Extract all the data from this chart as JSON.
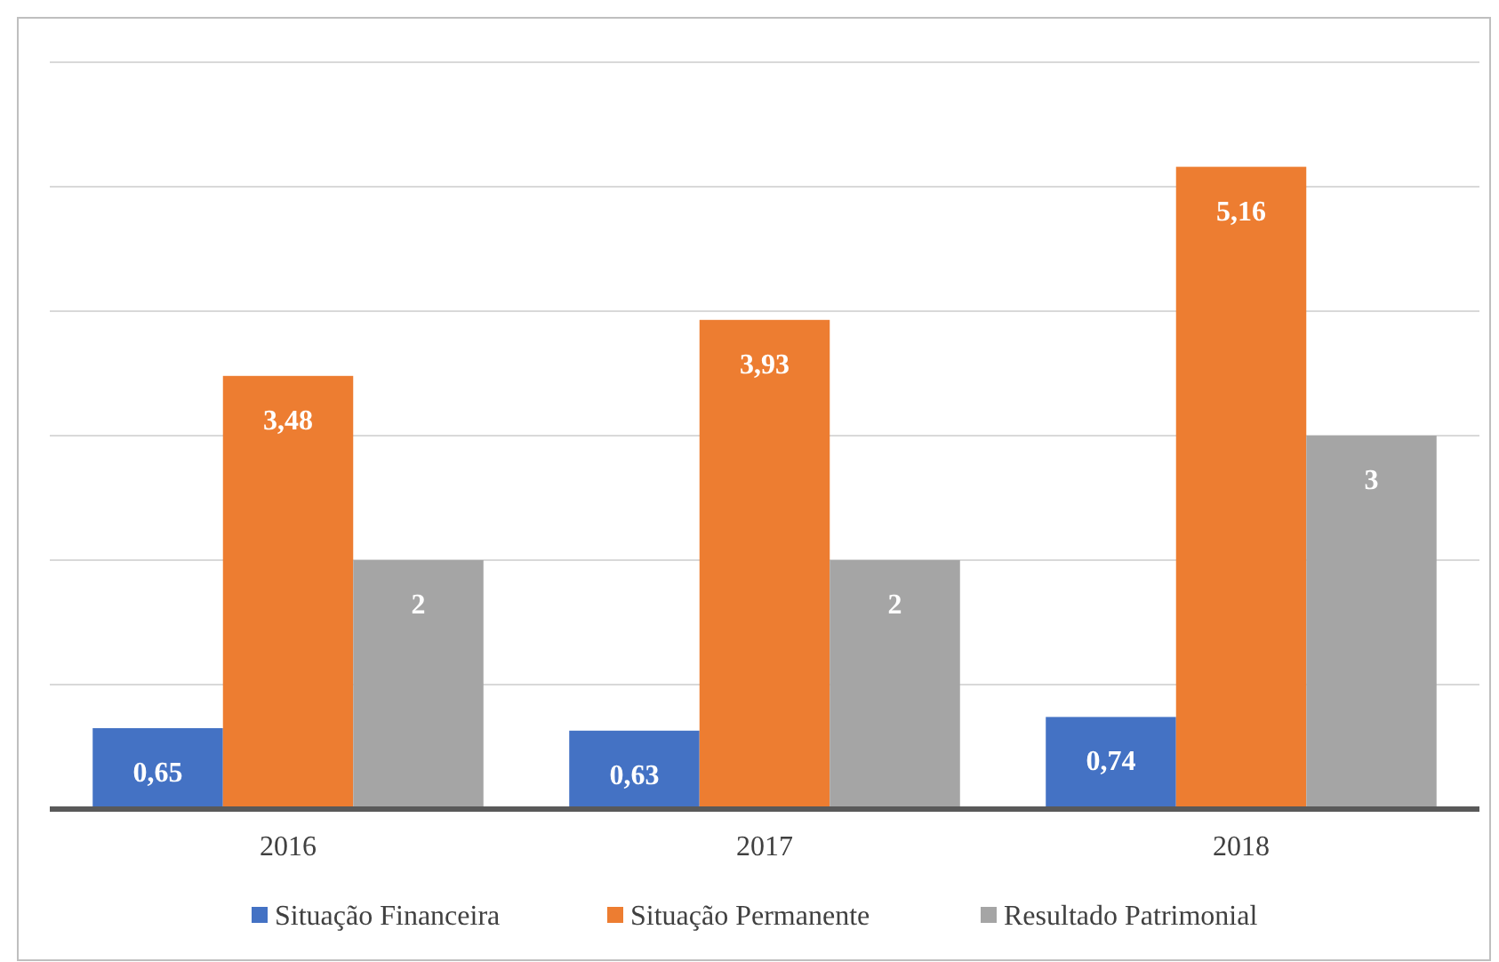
{
  "chart_data": {
    "type": "bar",
    "categories": [
      "2016",
      "2017",
      "2018"
    ],
    "series": [
      {
        "name": "Situação Financeira",
        "color": "#4472c4",
        "values": [
          0.65,
          0.63,
          0.74
        ],
        "value_labels": [
          "0,65",
          "0,63",
          "0,74"
        ]
      },
      {
        "name": "Situação Permanente",
        "color": "#ed7d31",
        "values": [
          3.48,
          3.93,
          5.16
        ],
        "value_labels": [
          "3,48",
          "3,93",
          "5,16"
        ]
      },
      {
        "name": "Resultado Patrimonial",
        "color": "#a5a5a5",
        "values": [
          2,
          2,
          3
        ],
        "value_labels": [
          "2",
          "2",
          "3"
        ]
      }
    ],
    "ylim": [
      0,
      6
    ],
    "yticks": [
      {
        "value": 0,
        "label": null
      },
      {
        "value": 1,
        "label": null
      },
      {
        "value": 2,
        "label": null
      },
      {
        "value": 3,
        "label": null
      },
      {
        "value": 4,
        "label": null
      },
      {
        "value": 5,
        "label": null
      },
      {
        "value": 6,
        "label": null
      }
    ],
    "grid": "y",
    "tick_labels": "x",
    "legend": "bottom"
  }
}
